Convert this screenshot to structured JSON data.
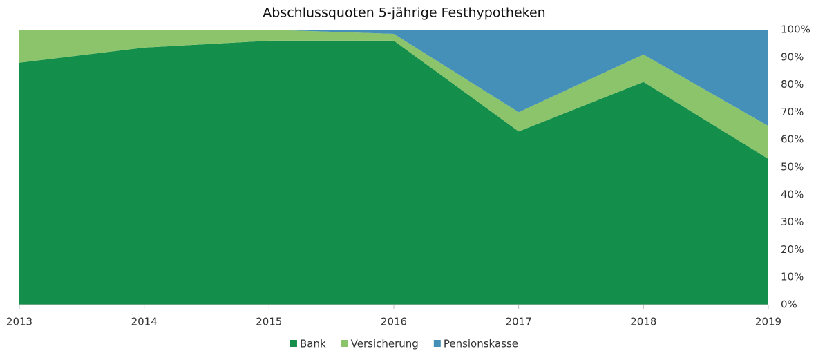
{
  "chart_data": {
    "type": "area",
    "stacked": true,
    "title": "Abschlussquoten 5-jährige Festhypotheken",
    "categories": [
      "2013",
      "2014",
      "2015",
      "2016",
      "2017",
      "2018",
      "2019"
    ],
    "series": [
      {
        "name": "Bank",
        "color": "#138f4b",
        "values": [
          88,
          93.5,
          96,
          96,
          63,
          81,
          53
        ]
      },
      {
        "name": "Versicherung",
        "color": "#8cc46b",
        "values": [
          12,
          6.5,
          4,
          2.5,
          7,
          10,
          12
        ]
      },
      {
        "name": "Pensionskasse",
        "color": "#4590b8",
        "values": [
          0,
          0,
          0,
          1.5,
          30,
          9,
          35
        ]
      }
    ],
    "ylim": [
      0,
      100
    ],
    "yticks": [
      {
        "value": 0,
        "label": "0%"
      },
      {
        "value": 10,
        "label": "10%"
      },
      {
        "value": 20,
        "label": "20%"
      },
      {
        "value": 30,
        "label": "30%"
      },
      {
        "value": 40,
        "label": "40%"
      },
      {
        "value": 50,
        "label": "50%"
      },
      {
        "value": 60,
        "label": "60%"
      },
      {
        "value": 70,
        "label": "70%"
      },
      {
        "value": 80,
        "label": "80%"
      },
      {
        "value": 90,
        "label": "90%"
      },
      {
        "value": 100,
        "label": "100%"
      }
    ],
    "yaxis_side": "right",
    "legend": "bottom",
    "grid": false
  }
}
